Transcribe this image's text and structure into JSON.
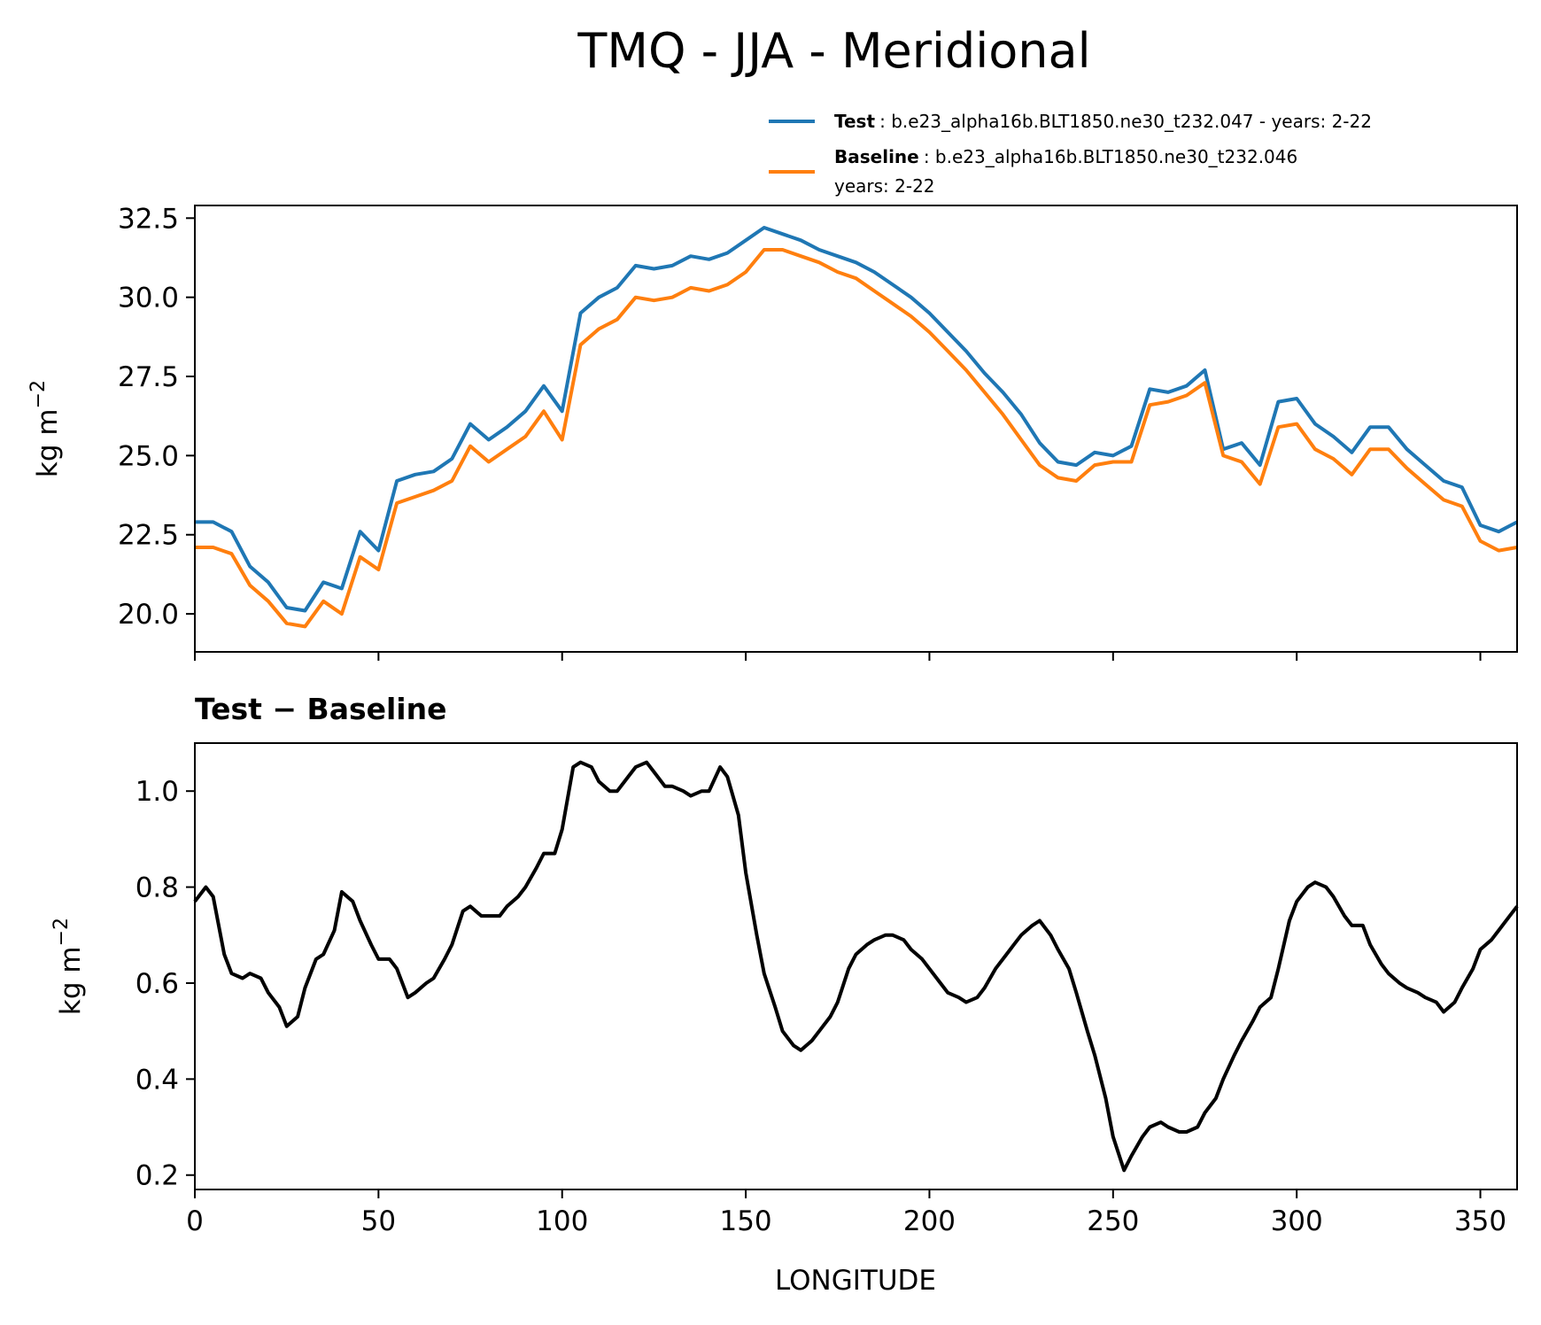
{
  "chart_data": [
    {
      "type": "line",
      "title": "TMQ - JJA - Meridional",
      "ylabel": "kg m",
      "ylabel_exponent": "−2",
      "xlim": [
        0,
        360
      ],
      "ylim": [
        18.8,
        32.9
      ],
      "xticks": [
        0,
        50,
        100,
        150,
        200,
        250,
        300,
        350
      ],
      "yticks": [
        20.0,
        22.5,
        25.0,
        27.5,
        30.0,
        32.5
      ],
      "ytick_labels": [
        "20.0",
        "22.5",
        "25.0",
        "27.5",
        "30.0",
        "32.5"
      ],
      "grid": false,
      "legend_position": "above-right",
      "x": [
        0,
        5,
        10,
        15,
        20,
        25,
        30,
        35,
        40,
        45,
        50,
        55,
        60,
        65,
        70,
        75,
        80,
        85,
        90,
        95,
        100,
        105,
        110,
        115,
        120,
        125,
        130,
        135,
        140,
        145,
        150,
        155,
        160,
        165,
        170,
        175,
        180,
        185,
        190,
        195,
        200,
        205,
        210,
        215,
        220,
        225,
        230,
        235,
        240,
        245,
        250,
        255,
        260,
        265,
        270,
        275,
        280,
        285,
        290,
        295,
        300,
        305,
        310,
        315,
        320,
        325,
        330,
        335,
        340,
        345,
        350,
        355,
        360
      ],
      "series": [
        {
          "name": "Test",
          "label_detail": ": b.e23_alpha16b.BLT1850.ne30_t232.047 - years: 2-22",
          "color": "#1f77b4",
          "values": [
            22.9,
            22.9,
            22.6,
            21.5,
            21.0,
            20.2,
            20.1,
            21.0,
            20.8,
            22.6,
            22.0,
            24.2,
            24.4,
            24.5,
            24.9,
            26.0,
            25.5,
            25.9,
            26.4,
            27.2,
            26.4,
            29.5,
            30.0,
            30.3,
            31.0,
            30.9,
            31.0,
            31.3,
            31.2,
            31.4,
            31.8,
            32.2,
            32.0,
            31.8,
            31.5,
            31.3,
            31.1,
            30.8,
            30.4,
            30.0,
            29.5,
            28.9,
            28.3,
            27.6,
            27.0,
            26.3,
            25.4,
            24.8,
            24.7,
            25.1,
            25.0,
            25.3,
            27.1,
            27.0,
            27.2,
            27.7,
            25.2,
            25.4,
            24.7,
            26.7,
            26.8,
            26.0,
            25.6,
            25.1,
            25.9,
            25.9,
            25.2,
            24.7,
            24.2,
            24.0,
            22.8,
            22.6,
            22.9
          ]
        },
        {
          "name": "Baseline",
          "label_detail": ": b.e23_alpha16b.BLT1850.ne30_t232.046",
          "label_detail_2": "years: 2-22",
          "color": "#ff7f0e",
          "values": [
            22.1,
            22.1,
            21.9,
            20.9,
            20.4,
            19.7,
            19.6,
            20.4,
            20.0,
            21.8,
            21.4,
            23.5,
            23.7,
            23.9,
            24.2,
            25.3,
            24.8,
            25.2,
            25.6,
            26.4,
            25.5,
            28.5,
            29.0,
            29.3,
            30.0,
            29.9,
            30.0,
            30.3,
            30.2,
            30.4,
            30.8,
            31.5,
            31.5,
            31.3,
            31.1,
            30.8,
            30.6,
            30.2,
            29.8,
            29.4,
            28.9,
            28.3,
            27.7,
            27.0,
            26.3,
            25.5,
            24.7,
            24.3,
            24.2,
            24.7,
            24.8,
            24.8,
            26.6,
            26.7,
            26.9,
            27.3,
            25.0,
            24.8,
            24.1,
            25.9,
            26.0,
            25.2,
            24.9,
            24.4,
            25.2,
            25.2,
            24.6,
            24.1,
            23.6,
            23.4,
            22.3,
            22.0,
            22.1
          ]
        }
      ]
    },
    {
      "type": "line",
      "title": "Test − Baseline",
      "xlabel": "LONGITUDE",
      "ylabel": "kg m",
      "ylabel_exponent": "−2",
      "xlim": [
        0,
        360
      ],
      "ylim": [
        0.17,
        1.1
      ],
      "xticks": [
        0,
        50,
        100,
        150,
        200,
        250,
        300,
        350
      ],
      "yticks": [
        0.2,
        0.4,
        0.6,
        0.8,
        1.0
      ],
      "ytick_labels": [
        "0.2",
        "0.4",
        "0.6",
        "0.8",
        "1.0"
      ],
      "grid": false,
      "series": [
        {
          "name": "",
          "color": "#000000",
          "x": [
            0,
            3,
            5,
            8,
            10,
            13,
            15,
            18,
            20,
            23,
            25,
            28,
            30,
            33,
            35,
            38,
            40,
            43,
            45,
            48,
            50,
            53,
            55,
            58,
            60,
            63,
            65,
            68,
            70,
            73,
            75,
            78,
            80,
            83,
            85,
            88,
            90,
            93,
            95,
            98,
            100,
            103,
            105,
            108,
            110,
            113,
            115,
            118,
            120,
            123,
            125,
            128,
            130,
            133,
            135,
            138,
            140,
            143,
            145,
            148,
            150,
            153,
            155,
            158,
            160,
            163,
            165,
            168,
            170,
            173,
            175,
            178,
            180,
            183,
            185,
            188,
            190,
            193,
            195,
            198,
            200,
            203,
            205,
            208,
            210,
            213,
            215,
            218,
            220,
            223,
            225,
            228,
            230,
            233,
            235,
            238,
            240,
            243,
            245,
            248,
            250,
            253,
            255,
            258,
            260,
            263,
            265,
            268,
            270,
            273,
            275,
            278,
            280,
            283,
            285,
            288,
            290,
            293,
            295,
            298,
            300,
            303,
            305,
            308,
            310,
            313,
            315,
            318,
            320,
            323,
            325,
            328,
            330,
            333,
            335,
            338,
            340,
            343,
            345,
            348,
            350,
            353,
            355,
            358,
            360
          ],
          "values": [
            0.77,
            0.8,
            0.78,
            0.66,
            0.62,
            0.61,
            0.62,
            0.61,
            0.58,
            0.55,
            0.51,
            0.53,
            0.59,
            0.65,
            0.66,
            0.71,
            0.79,
            0.77,
            0.73,
            0.68,
            0.65,
            0.65,
            0.63,
            0.57,
            0.58,
            0.6,
            0.61,
            0.65,
            0.68,
            0.75,
            0.76,
            0.74,
            0.74,
            0.74,
            0.76,
            0.78,
            0.8,
            0.84,
            0.87,
            0.87,
            0.92,
            1.05,
            1.06,
            1.05,
            1.02,
            1.0,
            1.0,
            1.03,
            1.05,
            1.06,
            1.04,
            1.01,
            1.01,
            1.0,
            0.99,
            1.0,
            1.0,
            1.05,
            1.03,
            0.95,
            0.83,
            0.7,
            0.62,
            0.55,
            0.5,
            0.47,
            0.46,
            0.48,
            0.5,
            0.53,
            0.56,
            0.63,
            0.66,
            0.68,
            0.69,
            0.7,
            0.7,
            0.69,
            0.67,
            0.65,
            0.63,
            0.6,
            0.58,
            0.57,
            0.56,
            0.57,
            0.59,
            0.63,
            0.65,
            0.68,
            0.7,
            0.72,
            0.73,
            0.7,
            0.67,
            0.63,
            0.58,
            0.5,
            0.45,
            0.36,
            0.28,
            0.21,
            0.24,
            0.28,
            0.3,
            0.31,
            0.3,
            0.29,
            0.29,
            0.3,
            0.33,
            0.36,
            0.4,
            0.45,
            0.48,
            0.52,
            0.55,
            0.57,
            0.63,
            0.73,
            0.77,
            0.8,
            0.81,
            0.8,
            0.78,
            0.74,
            0.72,
            0.72,
            0.68,
            0.64,
            0.62,
            0.6,
            0.59,
            0.58,
            0.57,
            0.56,
            0.54,
            0.56,
            0.59,
            0.63,
            0.67,
            0.69,
            0.71,
            0.74,
            0.76
          ]
        }
      ]
    }
  ]
}
